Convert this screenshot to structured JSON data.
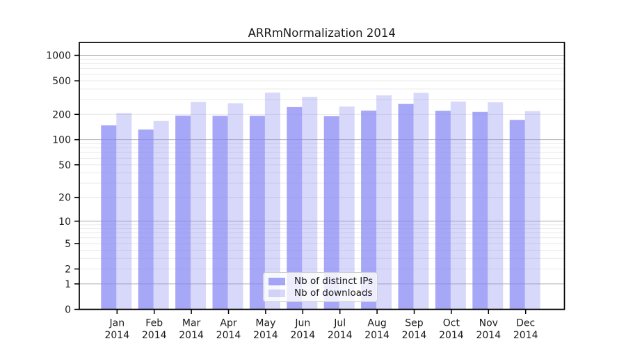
{
  "chart_data": {
    "type": "bar",
    "title": "ARRmNormalization 2014",
    "categories": [
      "Jan",
      "Feb",
      "Mar",
      "Apr",
      "May",
      "Jun",
      "Jul",
      "Aug",
      "Sep",
      "Oct",
      "Nov",
      "Dec"
    ],
    "category_year": "2014",
    "series": [
      {
        "name": "Nb of distinct IPs",
        "color": "rgba(133,133,245,0.72)",
        "values": [
          148,
          132,
          193,
          192,
          192,
          244,
          190,
          222,
          267,
          221,
          214,
          172
        ]
      },
      {
        "name": "Nb of downloads",
        "color": "rgba(129,129,239,0.31)",
        "values": [
          207,
          167,
          281,
          271,
          362,
          323,
          248,
          336,
          360,
          284,
          278,
          219
        ]
      }
    ],
    "y_scale": "log1p",
    "y_ticks": [
      0,
      1,
      2,
      5,
      10,
      20,
      50,
      100,
      200,
      500,
      1000
    ],
    "ylim": [
      0,
      1420
    ],
    "xlabel": "",
    "ylabel": "",
    "grid": "on",
    "legend_position": "inside-bottom-center",
    "colors": {
      "major_grid": "#b2b2b2",
      "minor_grid": "#e9e9e9",
      "axis": "#000000",
      "text": "#1a1a1a"
    }
  }
}
